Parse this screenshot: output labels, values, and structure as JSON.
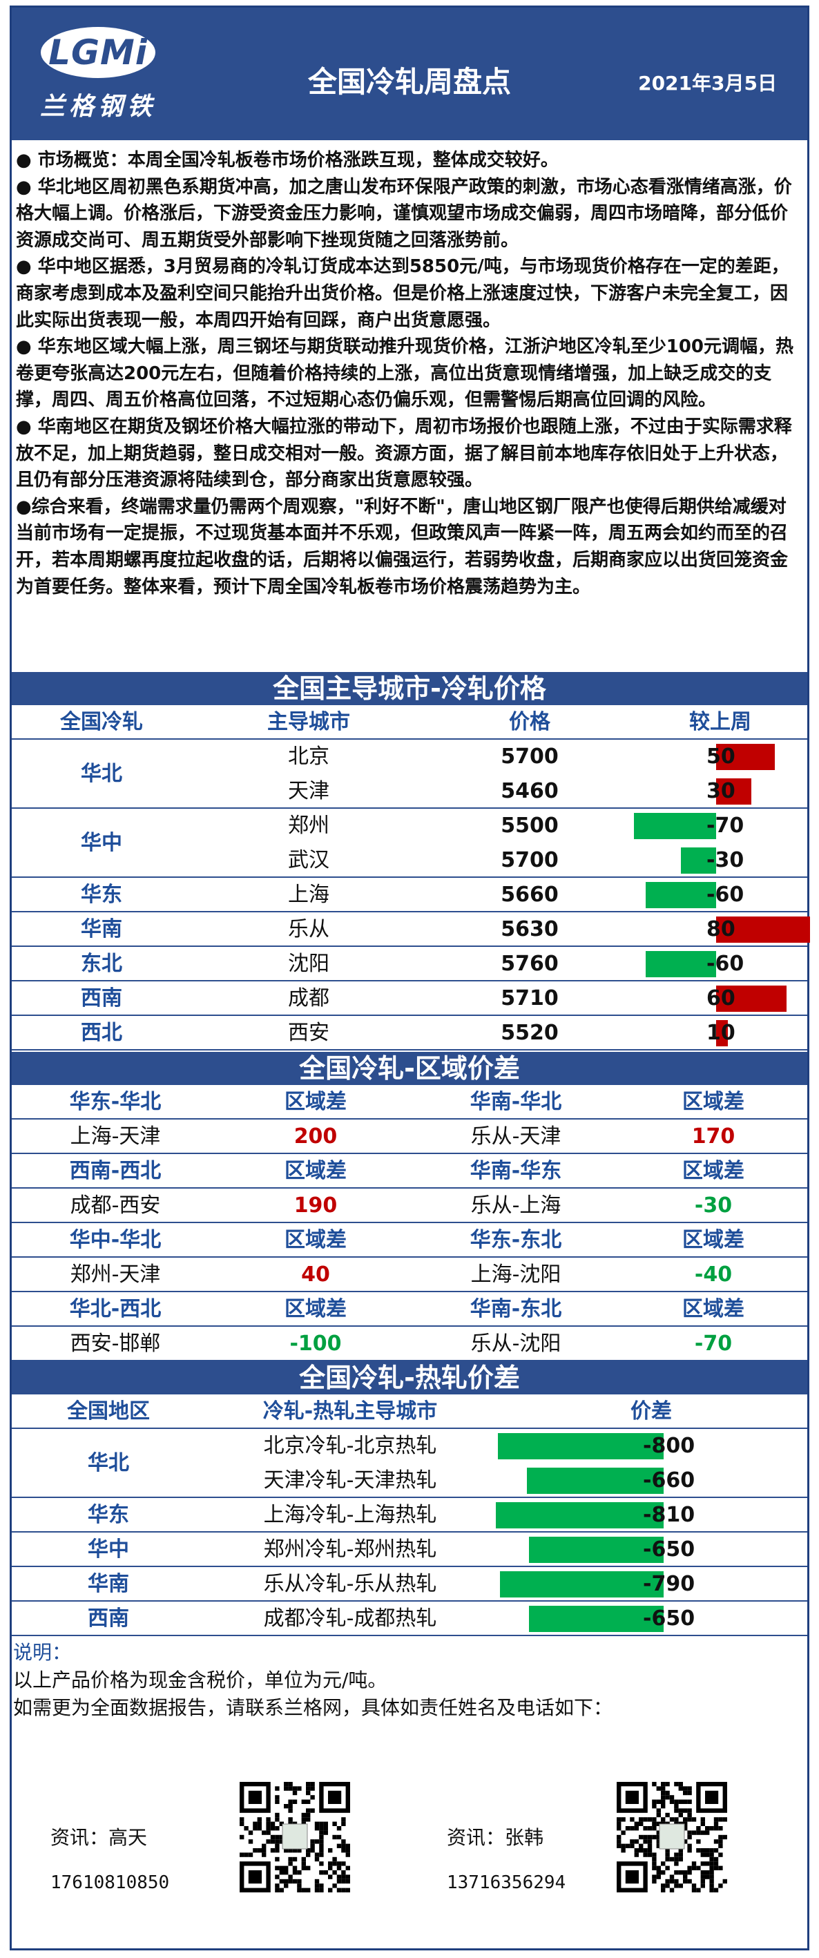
{
  "header": {
    "logo_text": "LGMi",
    "logo_cn": "兰格钢铁",
    "title": "全国冷轧周盘点",
    "date": "2021年3月5日"
  },
  "summary": [
    "● 市场概览：本周全国冷轧板卷市场价格涨跌互现，整体成交较好。",
    "● 华北地区周初黑色系期货冲高，加之唐山发布环保限产政策的刺激，市场心态看涨情绪高涨，价格大幅上调。价格涨后，下游受资金压力影响，谨慎观望市场成交偏弱，周四市场暗降，部分低价资源成交尚可、周五期货受外部影响下挫现货随之回落涨势前。",
    "● 华中地区据悉，3月贸易商的冷轧订货成本达到5850元/吨，与市场现货价格存在一定的差距，商家考虑到成本及盈利空间只能抬升出货价格。但是价格上涨速度过快，下游客户未完全复工，因此实际出货表现一般，本周四开始有回踩，商户出货意愿强。",
    "● 华东地区域大幅上涨，周三钢坯与期货联动推升现货价格，江浙沪地区冷轧至少100元调幅，热卷更夸张高达200元左右，但随着价格持续的上涨，高位出货意现情绪增强，加上缺乏成交的支撑，周四、周五价格高位回落，不过短期心态仍偏乐观，但需警惕后期高位回调的风险。",
    "● 华南地区在期货及钢坯价格大幅拉涨的带动下，周初市场报价也跟随上涨，不过由于实际需求释放不足，加上期货趋弱，整日成交相对一般。资源方面，据了解目前本地库存依旧处于上升状态，且仍有部分压港资源将陆续到仓，部分商家出货意愿较强。",
    "●综合来看，终端需求量仍需两个周观察，\"利好不断\"，唐山地区钢厂限产也使得后期供给减缓对当前市场有一定提振，不过现货基本面并不乐观，但政策风声一阵紧一阵，周五两会如约而至的召开，若本周期螺再度拉起收盘的话，后期将以偏强运行，若弱势收盘，后期商家应以出货回笼资金为首要任务。整体来看，预计下周全国冷轧板卷市场价格震荡趋势为主。"
  ],
  "city_prices": {
    "title": "全国主导城市-冷轧价格",
    "headers": [
      "全国冷轧",
      "主导城市",
      "价格",
      "较上周"
    ],
    "groups": [
      {
        "region": "华北",
        "rows": [
          {
            "city": "北京",
            "price": "5700",
            "change": 50
          },
          {
            "city": "天津",
            "price": "5460",
            "change": 30
          }
        ]
      },
      {
        "region": "华中",
        "rows": [
          {
            "city": "郑州",
            "price": "5500",
            "change": -70
          },
          {
            "city": "武汉",
            "price": "5700",
            "change": -30
          }
        ]
      },
      {
        "region": "华东",
        "rows": [
          {
            "city": "上海",
            "price": "5660",
            "change": -60
          }
        ]
      },
      {
        "region": "华南",
        "rows": [
          {
            "city": "乐从",
            "price": "5630",
            "change": 80
          }
        ]
      },
      {
        "region": "东北",
        "rows": [
          {
            "city": "沈阳",
            "price": "5760",
            "change": -60
          }
        ]
      },
      {
        "region": "西南",
        "rows": [
          {
            "city": "成都",
            "price": "5710",
            "change": 60
          }
        ]
      },
      {
        "region": "西北",
        "rows": [
          {
            "city": "西安",
            "price": "5520",
            "change": 10
          }
        ]
      }
    ],
    "colors": {
      "positive": "#c00000",
      "negative": "#00b050"
    }
  },
  "region_diff": {
    "title": "全国冷轧-区域价差",
    "diff_label": "区域差",
    "blocks": [
      {
        "left": {
          "region": "华东-华北",
          "pair": "上海-天津",
          "value": "200",
          "sign": "pos"
        },
        "right": {
          "region": "华南-华北",
          "pair": "乐从-天津",
          "value": "170",
          "sign": "pos"
        }
      },
      {
        "left": {
          "region": "西南-西北",
          "pair": "成都-西安",
          "value": "190",
          "sign": "pos"
        },
        "right": {
          "region": "华南-华东",
          "pair": "乐从-上海",
          "value": "-30",
          "sign": "neg"
        }
      },
      {
        "left": {
          "region": "华中-华北",
          "pair": "郑州-天津",
          "value": "40",
          "sign": "pos"
        },
        "right": {
          "region": "华东-东北",
          "pair": "上海-沈阳",
          "value": "-40",
          "sign": "neg"
        }
      },
      {
        "left": {
          "region": "华北-西北",
          "pair": "西安-邯郸",
          "value": "-100",
          "sign": "neg"
        },
        "right": {
          "region": "华南-东北",
          "pair": "乐从-沈阳",
          "value": "-70",
          "sign": "neg"
        }
      }
    ]
  },
  "hot_cold": {
    "title": "全国冷轧-热轧价差",
    "headers": [
      "全国地区",
      "冷轧-热轧主导城市",
      "价差"
    ],
    "groups": [
      {
        "region": "华北",
        "rows": [
          {
            "pair": "北京冷轧-北京热轧",
            "diff": -800
          },
          {
            "pair": "天津冷轧-天津热轧",
            "diff": -660
          }
        ]
      },
      {
        "region": "华东",
        "rows": [
          {
            "pair": "上海冷轧-上海热轧",
            "diff": -810
          }
        ]
      },
      {
        "region": "华中",
        "rows": [
          {
            "pair": "郑州冷轧-郑州热轧",
            "diff": -650
          }
        ]
      },
      {
        "region": "华南",
        "rows": [
          {
            "pair": "乐从冷轧-乐从热轧",
            "diff": -790
          }
        ]
      },
      {
        "region": "西南",
        "rows": [
          {
            "pair": "成都冷轧-成都热轧",
            "diff": -650
          }
        ]
      }
    ]
  },
  "footer": {
    "notes_label": "说明：",
    "note1": "以上产品价格为现金含税价，单位为元/吨。",
    "note2": "如需更为全面数据报告，请联系兰格网，具体如责任姓名及电话如下：",
    "contacts": [
      {
        "name": "资讯：高天",
        "phone": "17610810850"
      },
      {
        "name": "资讯：张韩",
        "phone": "13716356294"
      }
    ]
  }
}
